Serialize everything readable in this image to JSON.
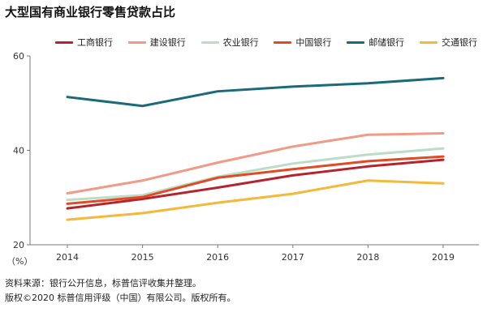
{
  "title": "大型国有商业银行零售贷款占比",
  "unit_label": "（%）",
  "source_note": "资料来源：银行公开信息，标普信评收集并整理。",
  "copyright": "版权©2020 标普信用评级（中国）有限公司。版权所有。",
  "chart_data": {
    "type": "line",
    "x": [
      "2014",
      "2015",
      "2016",
      "2017",
      "2018",
      "2019"
    ],
    "ylim": [
      20,
      60
    ],
    "yticks": [
      "20",
      "40",
      "60"
    ],
    "legend_position": "top",
    "series": [
      {
        "name": "工商银行",
        "color": "#b5232f",
        "values": [
          27.7,
          29.7,
          32.1,
          34.7,
          36.6,
          38.0
        ]
      },
      {
        "name": "建设银行",
        "color": "#f09a87",
        "values": [
          30.9,
          33.6,
          37.4,
          40.8,
          43.3,
          43.6
        ]
      },
      {
        "name": "农业银行",
        "color": "#bcdcc6",
        "values": [
          29.5,
          30.5,
          34.4,
          37.2,
          39.1,
          40.4
        ]
      },
      {
        "name": "中国银行",
        "color": "#e04a25",
        "values": [
          28.7,
          30.1,
          34.2,
          36.0,
          37.7,
          38.7
        ]
      },
      {
        "name": "邮储银行",
        "color": "#1b6a7a",
        "values": [
          51.3,
          49.4,
          52.5,
          53.5,
          54.2,
          55.3
        ]
      },
      {
        "name": "交通银行",
        "color": "#f2b93b",
        "values": [
          25.3,
          26.7,
          28.9,
          30.8,
          33.6,
          33.0
        ]
      }
    ]
  }
}
